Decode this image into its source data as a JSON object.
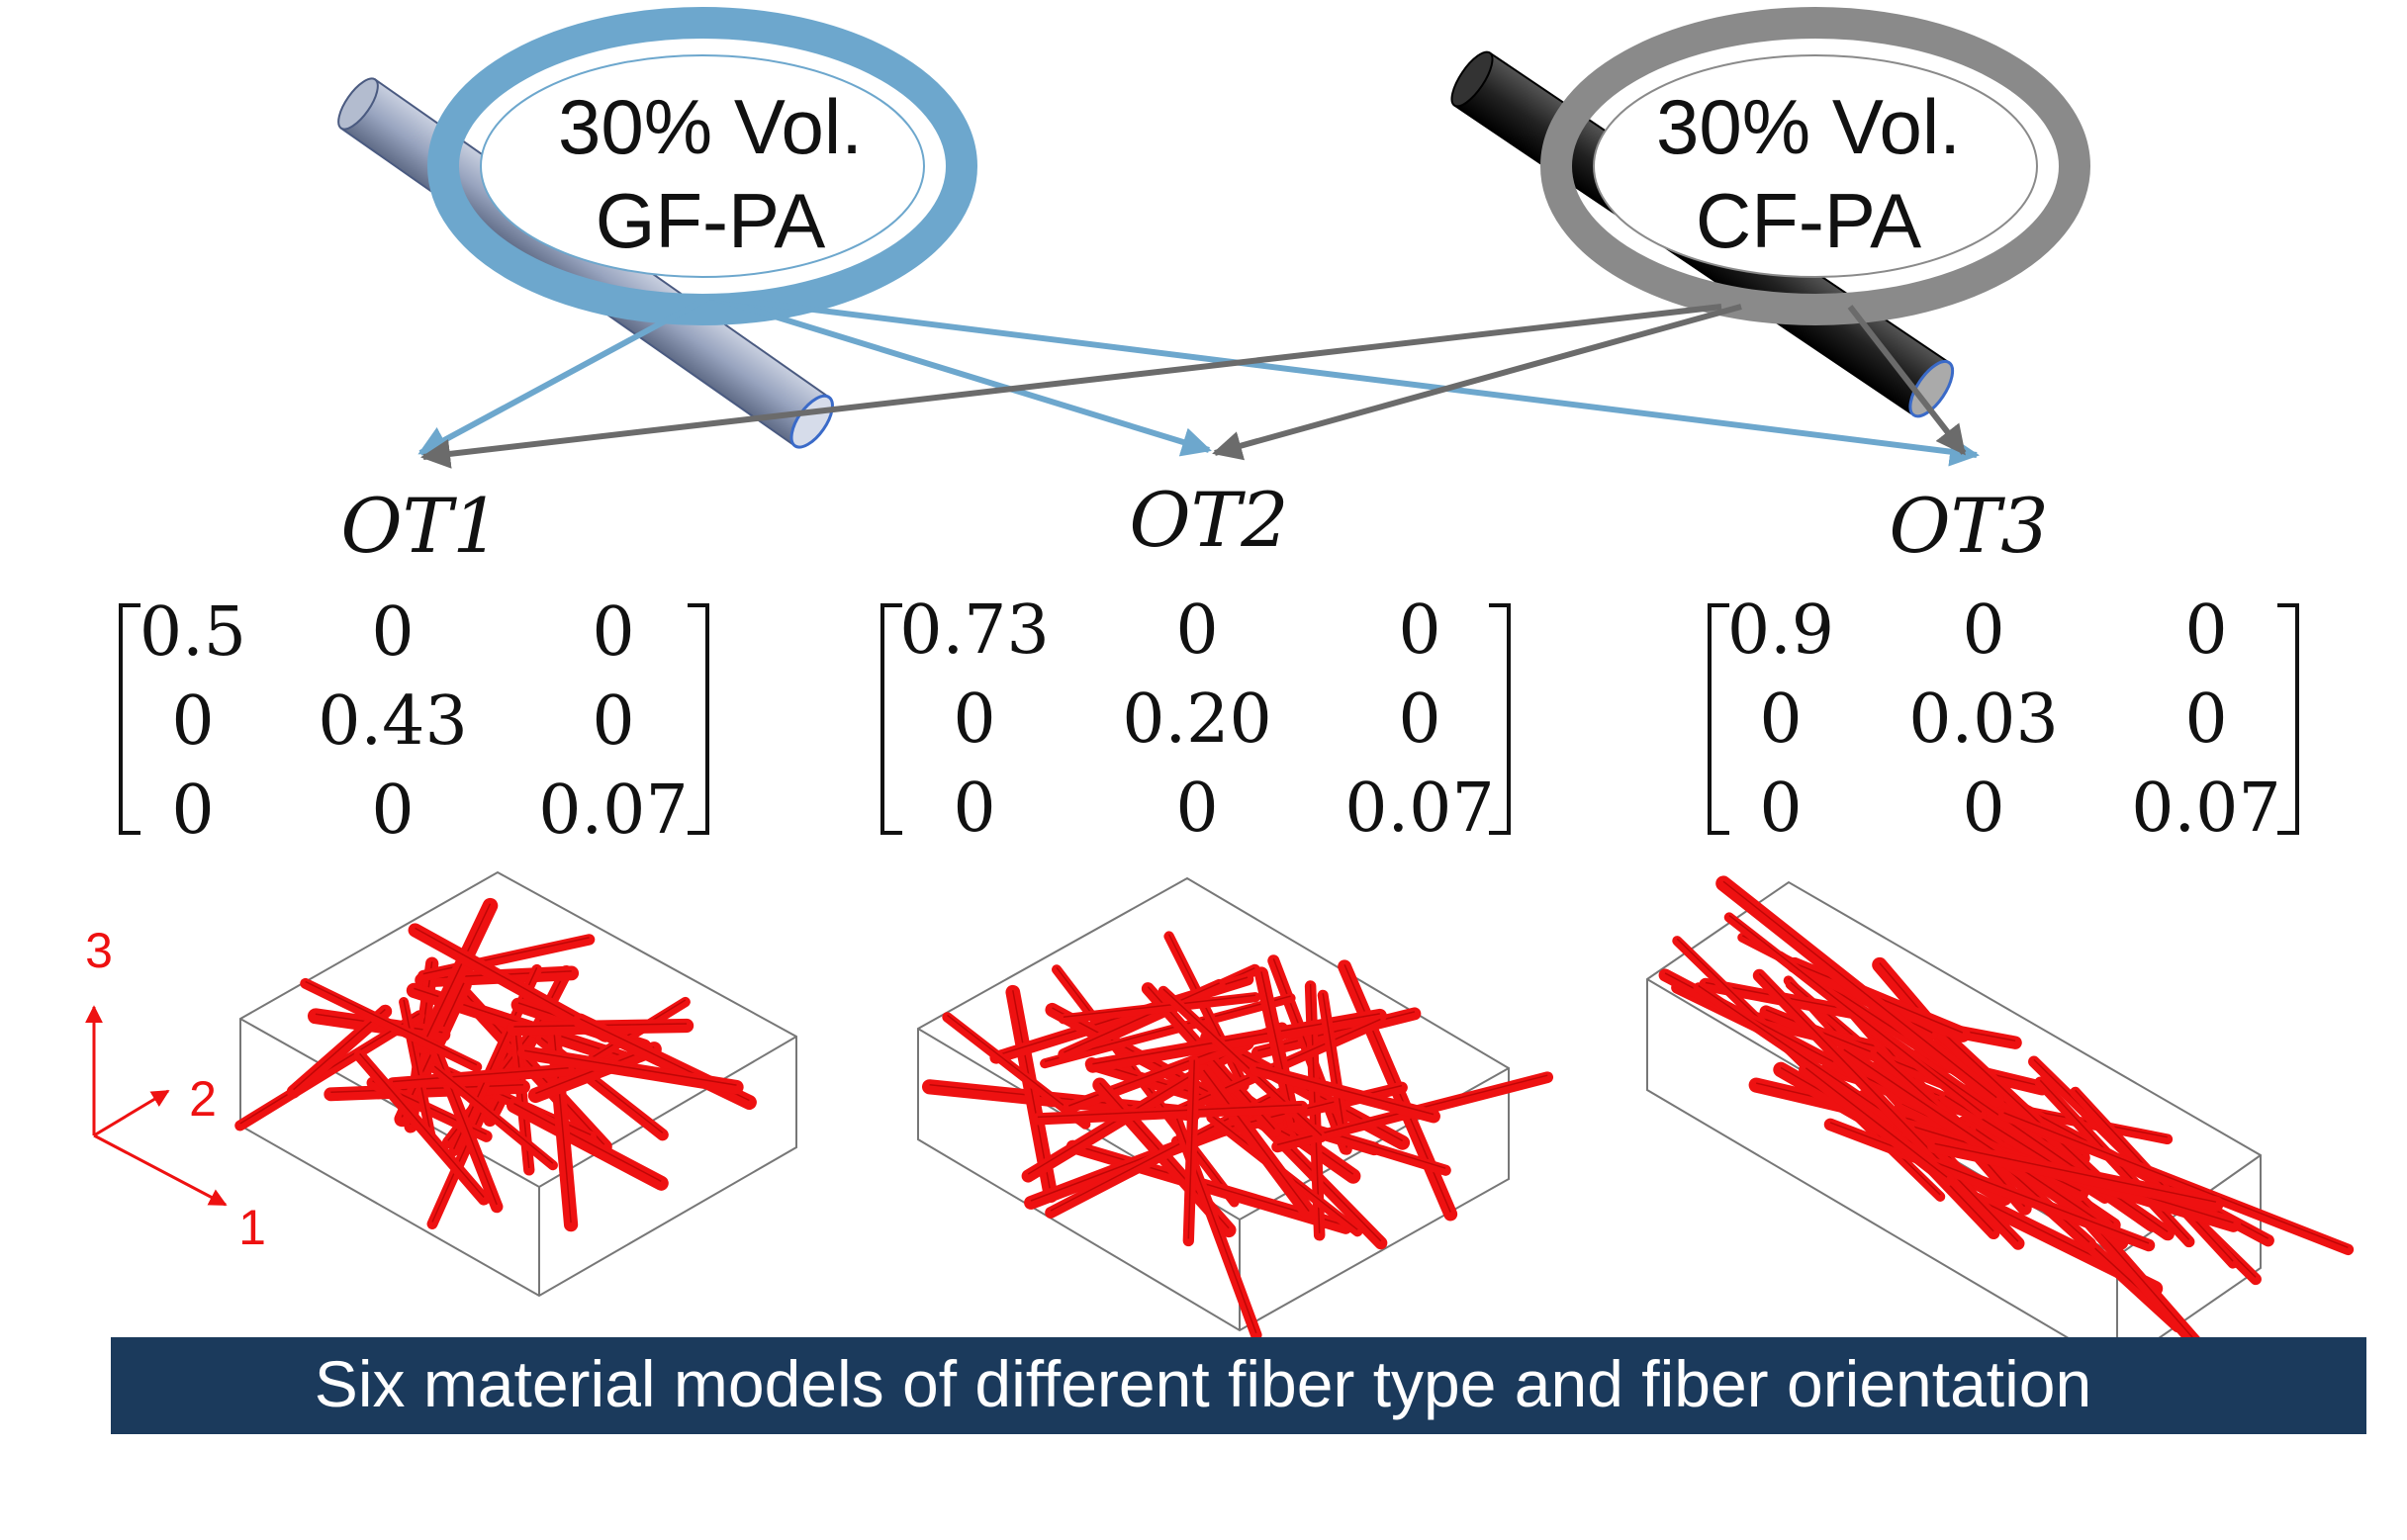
{
  "materials": [
    {
      "line1": "30% Vol.",
      "line2": "GF-PA",
      "ring_color": "#6da7cd",
      "fiber_color": "#98a4bf"
    },
    {
      "line1": "30% Vol.",
      "line2": "CF-PA",
      "ring_color": "#8a8a8a",
      "fiber_color": "#222222"
    }
  ],
  "orientation_tensors": [
    {
      "label": "OT1",
      "matrix": [
        [
          "0.5",
          "0",
          "0"
        ],
        [
          "0",
          "0.43",
          "0"
        ],
        [
          "0",
          "0",
          "0.07"
        ]
      ]
    },
    {
      "label": "OT2",
      "matrix": [
        [
          "0.73",
          "0",
          "0"
        ],
        [
          "0",
          "0.20",
          "0"
        ],
        [
          "0",
          "0",
          "0.07"
        ]
      ]
    },
    {
      "label": "OT3",
      "matrix": [
        [
          "0.9",
          "0",
          "0"
        ],
        [
          "0",
          "0.03",
          "0"
        ],
        [
          "0",
          "0",
          "0.07"
        ]
      ]
    }
  ],
  "axes": {
    "x": "1",
    "y": "2",
    "z": "3"
  },
  "banner": {
    "text": "Six material models of different fiber type and fiber orientation"
  },
  "colors": {
    "fiber_red": "#ee1111",
    "banner_bg": "#1b3a5c",
    "gf_arrow": "#6da7cd",
    "cf_arrow": "#6b6b6b"
  }
}
